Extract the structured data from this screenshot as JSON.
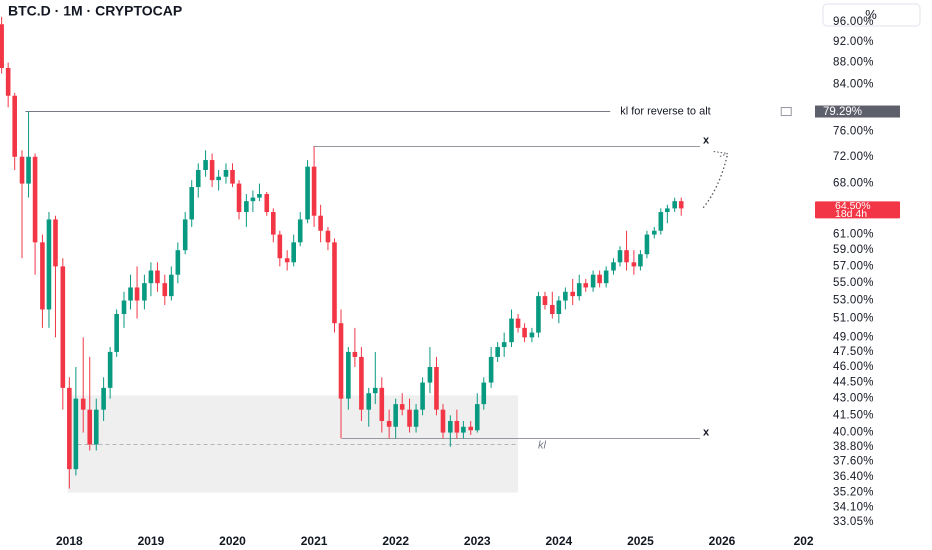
{
  "chart_data": {
    "type": "candlestick",
    "title": "BTC.D · 1M · CRYPTOCAP",
    "scale_button": "%",
    "log_scale": true,
    "grid": false,
    "up_color": "#089981",
    "down_color": "#f23645",
    "x": [
      2017.17,
      2017.25,
      2017.33,
      2017.42,
      2017.5,
      2017.58,
      2017.67,
      2017.75,
      2017.83,
      2017.92,
      2018,
      2018.08,
      2018.17,
      2018.25,
      2018.33,
      2018.42,
      2018.5,
      2018.58,
      2018.67,
      2018.75,
      2018.83,
      2018.92,
      2019,
      2019.08,
      2019.17,
      2019.25,
      2019.33,
      2019.42,
      2019.5,
      2019.58,
      2019.67,
      2019.75,
      2019.83,
      2019.92,
      2020,
      2020.08,
      2020.17,
      2020.25,
      2020.33,
      2020.42,
      2020.5,
      2020.58,
      2020.67,
      2020.75,
      2020.83,
      2020.92,
      2021,
      2021.08,
      2021.17,
      2021.25,
      2021.33,
      2021.42,
      2021.5,
      2021.58,
      2021.67,
      2021.75,
      2021.83,
      2021.92,
      2022,
      2022.08,
      2022.17,
      2022.25,
      2022.33,
      2022.42,
      2022.5,
      2022.58,
      2022.67,
      2022.75,
      2022.83,
      2022.92,
      2023,
      2023.08,
      2023.17,
      2023.25,
      2023.33,
      2023.42,
      2023.5,
      2023.58,
      2023.67,
      2023.75,
      2023.83,
      2023.92,
      2024,
      2024.08,
      2024.17,
      2024.25,
      2024.33,
      2024.42,
      2024.5,
      2024.58,
      2024.67,
      2024.75,
      2024.83,
      2024.92,
      2025,
      2025.08,
      2025.17,
      2025.25,
      2025.33,
      2025.42,
      2025.5
    ],
    "open": [
      95.5,
      87,
      82,
      72,
      68,
      72,
      60,
      52,
      63,
      57,
      44,
      37,
      43,
      42,
      39,
      42,
      44,
      47.5,
      51.5,
      53,
      54.5,
      53,
      55,
      56.5,
      55,
      53.5,
      56,
      59,
      63,
      67.5,
      70,
      71.5,
      68.5,
      69,
      70,
      68,
      64,
      65.5,
      66,
      66.5,
      64,
      61,
      58,
      57.5,
      60,
      63,
      70.5,
      63.5,
      61.5,
      60,
      50.5,
      43,
      47.5,
      47,
      42,
      43.5,
      44,
      41,
      40.5,
      42.5,
      42,
      40.5,
      42,
      44.5,
      46,
      42,
      40,
      41,
      40,
      40.5,
      40.2,
      42.5,
      44.5,
      47,
      48,
      48.5,
      51,
      50,
      49,
      49.5,
      53.5,
      52.5,
      51.5,
      53,
      54,
      53.5,
      55,
      54.5,
      56,
      55,
      56.5,
      57.5,
      59,
      57.5,
      57,
      58.5,
      61,
      61.5,
      64,
      64.5,
      65.5
    ],
    "high": [
      97,
      88,
      82.5,
      73,
      79.3,
      72.5,
      61,
      64,
      63.5,
      58,
      45,
      46,
      49,
      47,
      43,
      45,
      48,
      52,
      54,
      56,
      57,
      56,
      57.5,
      57.5,
      56,
      57,
      60,
      64,
      68.5,
      71,
      73,
      72.5,
      70,
      71,
      71,
      68.5,
      66.5,
      67,
      68,
      66.8,
      64.5,
      61.5,
      59,
      61,
      64,
      71.5,
      73.6,
      65,
      62,
      60.5,
      52,
      48,
      50,
      48,
      44,
      47.5,
      45,
      42,
      43,
      43.5,
      43,
      42.5,
      45,
      48,
      47,
      42.5,
      41.5,
      42,
      41,
      41,
      43.5,
      45,
      48,
      48.5,
      49.5,
      52,
      51.5,
      50.5,
      50,
      54,
      54,
      54,
      53.5,
      54.5,
      55.5,
      56,
      55.5,
      56.5,
      56.5,
      57,
      58,
      59.5,
      61.5,
      59,
      59,
      61.5,
      62,
      64.5,
      65,
      66,
      66
    ],
    "low": [
      86,
      80,
      70,
      58,
      66,
      56,
      50,
      50,
      49,
      42,
      35.5,
      36.5,
      40,
      38.5,
      38.5,
      41,
      43,
      47,
      50,
      52,
      51,
      52,
      53.5,
      54,
      52.5,
      53,
      55,
      58.5,
      62,
      66,
      69,
      67.5,
      67,
      68,
      67.5,
      63,
      62,
      64,
      65.5,
      63.5,
      60,
      57,
      56.5,
      57,
      59.5,
      62.5,
      62,
      60,
      59,
      49.5,
      39.5,
      42,
      46,
      41,
      40.5,
      42.5,
      40,
      39.5,
      39.5,
      41.5,
      40,
      40,
      41.5,
      43.5,
      41.5,
      39.5,
      38.8,
      39.5,
      39.5,
      39.8,
      40,
      42,
      44,
      46.5,
      47,
      48,
      49.5,
      48.5,
      48.5,
      49,
      52,
      51,
      50.5,
      52,
      52.5,
      53,
      54,
      54,
      54.5,
      54.5,
      56,
      57,
      56.5,
      56,
      56.5,
      58,
      60.5,
      61,
      62.5,
      64,
      63.5
    ],
    "close": [
      87,
      82,
      72,
      68,
      72,
      60,
      52,
      63,
      57,
      44,
      37,
      43,
      42,
      39,
      42,
      44,
      47.5,
      51.5,
      53,
      54.5,
      53,
      55,
      56.5,
      55,
      53.5,
      56,
      59,
      63,
      67.5,
      70,
      71.5,
      68.5,
      69,
      70,
      68,
      64,
      65.5,
      66,
      66.5,
      64,
      61,
      58,
      57.5,
      60,
      63,
      70.5,
      63.5,
      61.5,
      60,
      50.5,
      43,
      47.5,
      47,
      42,
      43.5,
      44,
      41,
      40.5,
      42.5,
      42,
      40.5,
      42,
      44.5,
      46,
      42,
      40,
      41,
      40,
      40.5,
      40.2,
      42.5,
      44.5,
      47,
      48,
      48.5,
      51,
      50,
      49,
      49.5,
      53.5,
      52.5,
      51.5,
      53,
      54,
      53.5,
      55,
      54.5,
      56,
      55,
      56.5,
      57.5,
      59,
      57.5,
      57,
      58.5,
      61,
      61.5,
      64,
      64.5,
      65.5,
      64.5
    ],
    "xlim": [
      2017.15,
      2027.14
    ],
    "xticks": [
      2018,
      2019,
      2020,
      2021,
      2022,
      2023,
      2024,
      2025,
      2026,
      {
        "value": 2027,
        "label": "202"
      }
    ],
    "ylim": [
      32.5,
      97.4
    ],
    "yticks": [
      {
        "value": 96,
        "label": "96.00%"
      },
      {
        "value": 92,
        "label": "92.00%"
      },
      {
        "value": 88,
        "label": "88.00%"
      },
      {
        "value": 84,
        "label": "84.00%"
      },
      {
        "value": 76,
        "label": "76.00%"
      },
      {
        "value": 72,
        "label": "72.00%"
      },
      {
        "value": 68,
        "label": "68.00%"
      },
      {
        "value": 61,
        "label": "61.00%"
      },
      {
        "value": 59,
        "label": "59.00%"
      },
      {
        "value": 57,
        "label": "57.00%"
      },
      {
        "value": 55,
        "label": "55.00%"
      },
      {
        "value": 53,
        "label": "53.00%"
      },
      {
        "value": 51,
        "label": "51.00%"
      },
      {
        "value": 49,
        "label": "49.00%"
      },
      {
        "value": 47.5,
        "label": "47.50%"
      },
      {
        "value": 46,
        "label": "46.00%"
      },
      {
        "value": 44.5,
        "label": "44.50%"
      },
      {
        "value": 43,
        "label": "43.00%"
      },
      {
        "value": 41.5,
        "label": "41.50%"
      },
      {
        "value": 40,
        "label": "40.00%"
      },
      {
        "value": 38.8,
        "label": "38.80%"
      },
      {
        "value": 37.6,
        "label": "37.60%"
      },
      {
        "value": 36.4,
        "label": "36.40%"
      },
      {
        "value": 35.2,
        "label": "35.20%"
      },
      {
        "value": 34.1,
        "label": "34.10%"
      },
      {
        "value": 33.05,
        "label": "33.05%"
      }
    ],
    "levels": [
      {
        "text": "kl for reverse to alt",
        "value": 79.29,
        "label": "79.29%",
        "x": [
          2017.46,
          2024.63
        ]
      }
    ],
    "lines": [
      {
        "value": 73.6,
        "x": [
          2020.99,
          2025.73
        ],
        "marker": "x"
      },
      {
        "value": 39.5,
        "x": [
          2021.34,
          2025.73
        ],
        "marker": "x"
      },
      {
        "value": 39,
        "x": [
          2018.1,
          2023.5
        ],
        "text": "kl",
        "dashed": true
      }
    ],
    "zone": {
      "x": [
        2017.98,
        2023.5
      ],
      "range": [
        35.2,
        43.3
      ]
    },
    "projection": {
      "x": [
        2025.77,
        2026.07
      ],
      "values": [
        64.6,
        72.5
      ]
    },
    "last_price": {
      "value": 64.5,
      "label": "64.50%",
      "countdown": "18d 4h"
    }
  }
}
